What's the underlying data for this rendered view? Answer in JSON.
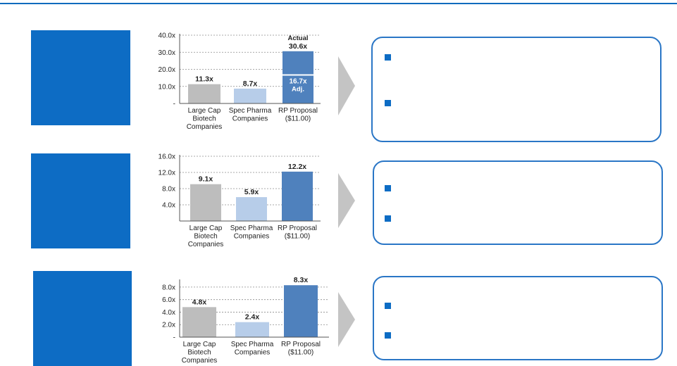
{
  "colors": {
    "accent": "#0d6cc4",
    "large_cap": "#bdbdbd",
    "spec_pharma": "#b7cde9",
    "rp_proposal": "#4f81bd",
    "callout_border": "#2a76c6",
    "chevron": "#c4c4c4"
  },
  "chart_data": [
    {
      "type": "bar",
      "categories": [
        "Large Cap Biotech Companies",
        "Spec Pharma Companies",
        "RP Proposal ($11.00)"
      ],
      "values": [
        11.3,
        8.7,
        30.6
      ],
      "data_labels": [
        "11.3x",
        "8.7x",
        "30.6x"
      ],
      "top_label": "Actual",
      "segment": {
        "value": 16.7,
        "label": "16.7x",
        "label2": "Adj."
      },
      "ticks": [
        0,
        10,
        20,
        30,
        40
      ],
      "tick_labels": [
        "-",
        "10.0x",
        "20.0x",
        "30.0x",
        "40.0x"
      ],
      "ylim": [
        0,
        40
      ],
      "grid": true
    },
    {
      "type": "bar",
      "categories": [
        "Large Cap Biotech Companies",
        "Spec Pharma Companies",
        "RP Proposal ($11.00)"
      ],
      "values": [
        9.1,
        5.9,
        12.2
      ],
      "data_labels": [
        "9.1x",
        "5.9x",
        "12.2x"
      ],
      "ticks": [
        4,
        8,
        12,
        16
      ],
      "tick_labels": [
        "4.0x",
        "8.0x",
        "12.0x",
        "16.0x"
      ],
      "ylim": [
        0,
        16
      ],
      "grid": true
    },
    {
      "type": "bar",
      "categories": [
        "Large Cap Biotech Companies",
        "Spec Pharma Companies",
        "RP Proposal ($11.00)"
      ],
      "values": [
        4.8,
        2.4,
        8.3
      ],
      "data_labels": [
        "4.8x",
        "2.4x",
        "8.3x"
      ],
      "ticks": [
        0,
        2,
        4,
        6,
        8
      ],
      "tick_labels": [
        "-",
        "2.0x",
        "4.0x",
        "6.0x",
        "8.0x"
      ],
      "ylim": [
        0,
        9
      ],
      "grid": true
    }
  ]
}
